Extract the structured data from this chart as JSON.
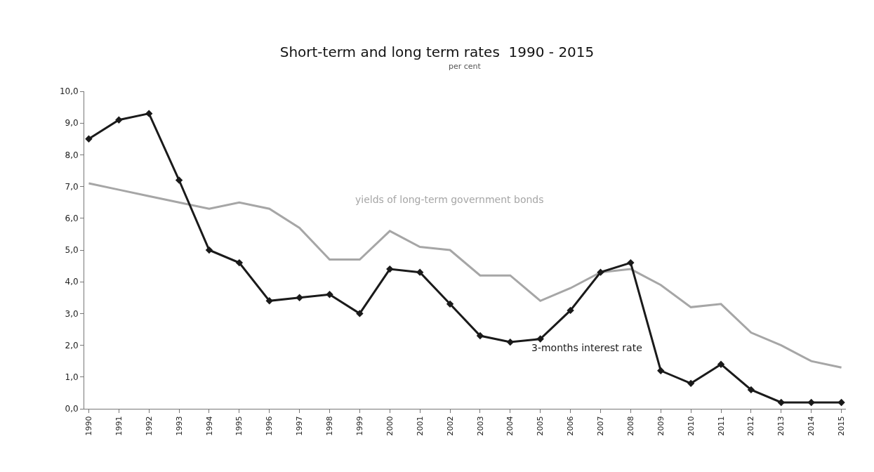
{
  "chart_data": {
    "type": "line",
    "title": "Short-term and long term rates  1990 - 2015",
    "subtitle": "per cent",
    "categories": [
      "1990",
      "1991",
      "1992",
      "1993",
      "1994",
      "1995",
      "1996",
      "1997",
      "1998",
      "1999",
      "2000",
      "2001",
      "2002",
      "2003",
      "2004",
      "2005",
      "2006",
      "2007",
      "2008",
      "2009",
      "2010",
      "2011",
      "2012",
      "2013",
      "2014",
      "2015"
    ],
    "series": [
      {
        "name": "yields of long-term government bonds",
        "color": "#a6a6a6",
        "marker": "none",
        "values": [
          7.1,
          6.9,
          6.7,
          6.5,
          6.3,
          6.5,
          6.3,
          5.7,
          4.7,
          4.7,
          5.6,
          5.1,
          5.0,
          4.2,
          4.2,
          3.4,
          3.8,
          4.3,
          4.4,
          3.9,
          3.2,
          3.3,
          2.4,
          2.0,
          1.5,
          1.3
        ]
      },
      {
        "name": "3-months interest rate",
        "color": "#1a1a1a",
        "marker": "diamond",
        "values": [
          8.5,
          9.1,
          9.3,
          7.2,
          5.0,
          4.6,
          3.4,
          3.5,
          3.6,
          3.0,
          4.4,
          4.3,
          3.3,
          2.3,
          2.1,
          2.2,
          3.1,
          4.3,
          4.6,
          1.2,
          0.8,
          1.4,
          0.6,
          0.2,
          0.2,
          0.2
        ]
      }
    ],
    "ylim": [
      0,
      10
    ],
    "yticks": [
      {
        "value": 0,
        "label": "0,0"
      },
      {
        "value": 1,
        "label": "1,0"
      },
      {
        "value": 2,
        "label": "2,0"
      },
      {
        "value": 3,
        "label": "3,0"
      },
      {
        "value": 4,
        "label": "4,0"
      },
      {
        "value": 5,
        "label": "5,0"
      },
      {
        "value": 6,
        "label": "6,0"
      },
      {
        "value": 7,
        "label": "7,0"
      },
      {
        "value": 8,
        "label": "8,0"
      },
      {
        "value": 9,
        "label": "9,0"
      },
      {
        "value": 10,
        "label": "10,0"
      }
    ],
    "grid": false
  }
}
